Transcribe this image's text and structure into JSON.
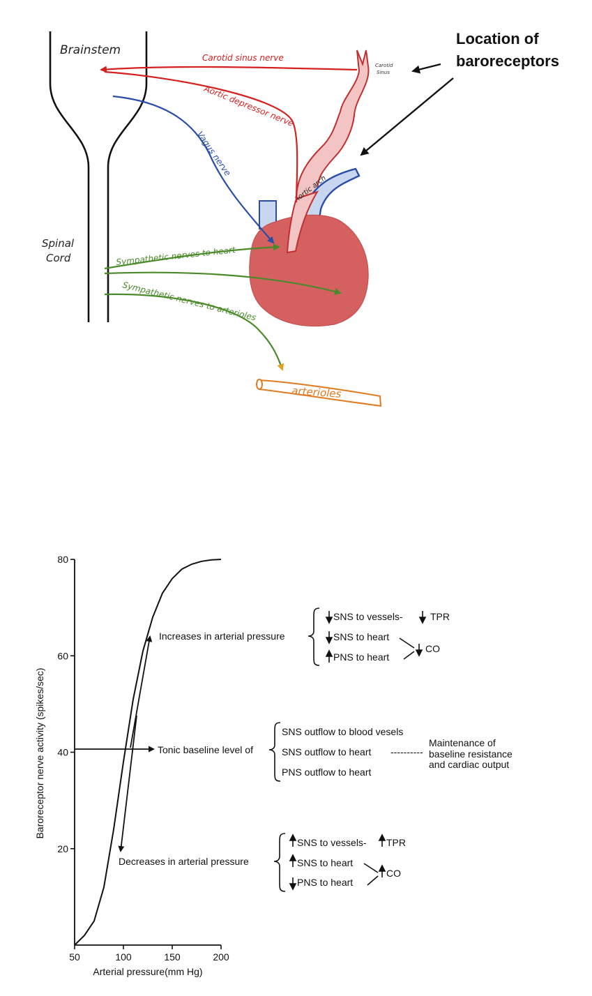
{
  "anatomy": {
    "labels": {
      "brainstem": "Brainstem",
      "spinal_cord_line1": "Spinal",
      "spinal_cord_line2": "Cord",
      "carotid_sinus_nerve": "Carotid sinus nerve",
      "aortic_depressor_nerve": "Aortic depressor nerve",
      "vagus_nerve": "Vagus nerve",
      "carotid_sinus_line1": "Carotid",
      "carotid_sinus_line2": "Sinus",
      "aortic_arch": "Aortic arch",
      "sympathetic_heart": "Sympathetic nerves to heart",
      "sympathetic_arterioles": "Sympathetic nerves to arterioles",
      "arterioles": "arterioles",
      "baroreceptors_line1": "Location of",
      "baroreceptors_line2": "baroreceptors"
    },
    "colors": {
      "afferent": "#d62020",
      "vagus": "#2a4ea8",
      "sympathetic": "#4a8a2a",
      "heart": "#d46060",
      "aorta": "#f2c4c4",
      "vein": "#c9d6f0",
      "arterioles": "#e07a20"
    }
  },
  "graph": {
    "xlabel": "Arterial pressure(mm Hg)",
    "ylabel": "Baroreceptor nerve activity (spikes/sec)",
    "xticks": [
      "50",
      "100",
      "150",
      "200"
    ],
    "yticks": [
      "20",
      "40",
      "60",
      "80"
    ],
    "increases": {
      "label": "Increases in arterial pressure",
      "effects": [
        "SNS to vessels-",
        "SNS to heart",
        "PNS to heart"
      ],
      "tpr": "TPR",
      "co": "CO"
    },
    "tonic": {
      "label": "Tonic baseline level of",
      "effects": [
        "SNS outflow to blood vesels",
        "SNS outflow to heart",
        "PNS outflow to heart"
      ],
      "dashes": "----------",
      "maintenance": [
        "Maintenance of",
        "baseline resistance",
        "and cardiac output"
      ]
    },
    "decreases": {
      "label": "Decreases in arterial pressure",
      "effects": [
        "SNS to vessels-",
        "SNS to heart",
        "PNS to heart"
      ],
      "tpr": "TPR",
      "co": "CO"
    }
  },
  "chart_data": {
    "type": "line",
    "xlabel": "Arterial pressure(mm Hg)",
    "ylabel": "Baroreceptor nerve activity (spikes/sec)",
    "xlim": [
      50,
      200
    ],
    "ylim": [
      0,
      80
    ],
    "series": [
      {
        "x": [
          50,
          60,
          70,
          80,
          90,
          100,
          110,
          120,
          130,
          140,
          150,
          160,
          170,
          180,
          190,
          200
        ],
        "y": [
          0,
          2,
          5,
          12,
          24,
          38,
          51,
          61,
          68,
          73,
          76,
          78,
          79,
          79.6,
          79.9,
          80
        ]
      }
    ]
  }
}
